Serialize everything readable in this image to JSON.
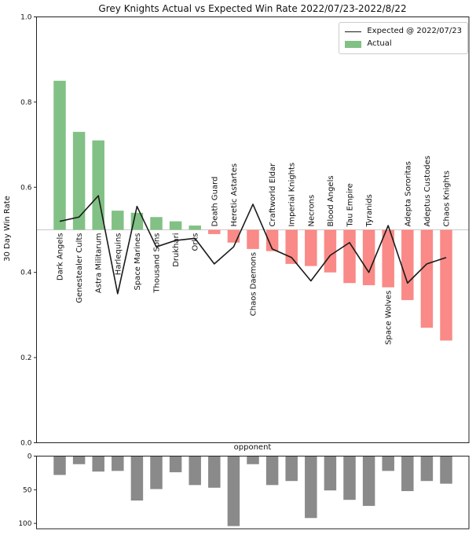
{
  "colors": {
    "actual_positive": "#82c185",
    "actual_negative": "#f98a87",
    "expected_line": "#1a1a1a",
    "games_bar": "#8a8a8a",
    "baseline_line": "#c9c9c9",
    "spine": "#222222",
    "legend_border": "#cccccc"
  },
  "chart_data": {
    "type": "bar",
    "title": "Grey Knights Actual vs Expected Win Rate 2022/07/23-2022/8/22",
    "xlabel": "opponent",
    "categories": [
      "Dark Angels",
      "Genestealer Cults",
      "Astra Militarum",
      "Harlequins",
      "Space Marines",
      "Thousand Sons",
      "Drukhari",
      "Orks",
      "Death Guard",
      "Heretic Astartes",
      "Chaos Daemons",
      "Craftworld Eldar",
      "Imperial Knights",
      "Necrons",
      "Blood Angels",
      "Tau Empire",
      "Tyranids",
      "Space Wolves",
      "Adepta Sororitas",
      "Adeptus Custodes",
      "Chaos Knights"
    ],
    "series": [
      {
        "name": "Expected @ 2022/07/23",
        "type": "line",
        "color": "#1a1a1a",
        "values": [
          0.52,
          0.53,
          0.58,
          0.35,
          0.555,
          0.46,
          0.475,
          0.48,
          0.42,
          0.46,
          0.56,
          0.455,
          0.435,
          0.38,
          0.44,
          0.47,
          0.4,
          0.51,
          0.375,
          0.42,
          0.435
        ]
      },
      {
        "name": "Actual",
        "type": "bar",
        "baseline": 0.5,
        "color_above": "#82c185",
        "color_below": "#f98a87",
        "values": [
          0.85,
          0.73,
          0.71,
          0.545,
          0.54,
          0.53,
          0.52,
          0.51,
          0.49,
          0.47,
          0.455,
          0.45,
          0.42,
          0.415,
          0.4,
          0.375,
          0.37,
          0.365,
          0.335,
          0.27,
          0.24
        ]
      }
    ],
    "main_axis": {
      "label": "30 Day Win Rate",
      "ticks": [
        "0.0",
        "0.2",
        "0.4",
        "0.6",
        "0.8",
        "1.0"
      ],
      "lim": [
        0,
        1
      ],
      "grid": false
    },
    "count_axis": {
      "ticks": [
        "0",
        "50",
        "100"
      ],
      "inverted": true,
      "lim": [
        0,
        108
      ]
    },
    "games_played": [
      28,
      12,
      23,
      22,
      66,
      49,
      24,
      43,
      47,
      104,
      12,
      43,
      37,
      92,
      51,
      65,
      74,
      22,
      52,
      37,
      41
    ],
    "label_below_exceptions": [
      "Chaos Daemons",
      "Space Wolves"
    ],
    "legend_position": "upper right"
  }
}
